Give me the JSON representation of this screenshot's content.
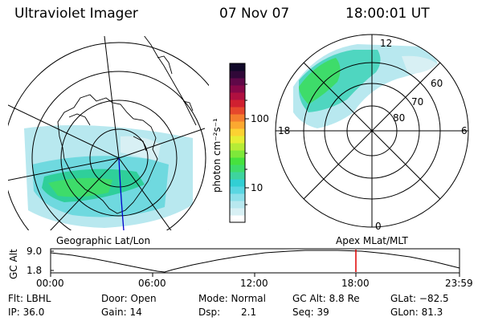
{
  "header": {
    "instrument": "Ultraviolet Imager",
    "date": "07 Nov 07",
    "time": "18:00:01 UT"
  },
  "left_panel": {
    "label": "Geographic Lat/Lon"
  },
  "right_panel": {
    "label": "Apex MLat/MLT",
    "lat_labels": [
      "60",
      "70",
      "80"
    ],
    "mlt_labels": [
      "12",
      "18",
      "6",
      "0"
    ]
  },
  "colorbar": {
    "label": "photon cm⁻²s⁻¹",
    "tick_labels": [
      "100",
      "10"
    ],
    "colors": [
      "#ffffff",
      "#d8f0f4",
      "#b8e8ef",
      "#8ee0ea",
      "#5ad6e2",
      "#32cfd4",
      "#3ed49e",
      "#3edc6a",
      "#46e23e",
      "#7ee83a",
      "#b6ec36",
      "#e6ee34",
      "#fcd232",
      "#fca830",
      "#f47e2e",
      "#e6482c",
      "#d02030",
      "#b01040",
      "#880848",
      "#600848",
      "#300838",
      "#100828"
    ]
  },
  "altitude_plot": {
    "ylabel": "GC Alt",
    "y_ticks": [
      "9.0",
      "1.8"
    ],
    "x_ticks": [
      "00:00",
      "06:00",
      "12:00",
      "18:00",
      "23:59"
    ],
    "marker_time": "18:00"
  },
  "status": {
    "flt": "Flt: LBHL",
    "door": "Door: Open",
    "mode": "Mode: Normal",
    "gc_alt": "GC Alt: 8.8 Re",
    "glat": "GLat: −82.5",
    "ip": "IP: 36.0",
    "gain": "Gain: 14",
    "dsp_label": "Dsp:",
    "dsp_value": "2.1",
    "seq": "Seq: 39",
    "glon": "GLon: 81.3"
  },
  "accent_colors": {
    "marker": "#e00000",
    "trace": "#0000cc"
  }
}
